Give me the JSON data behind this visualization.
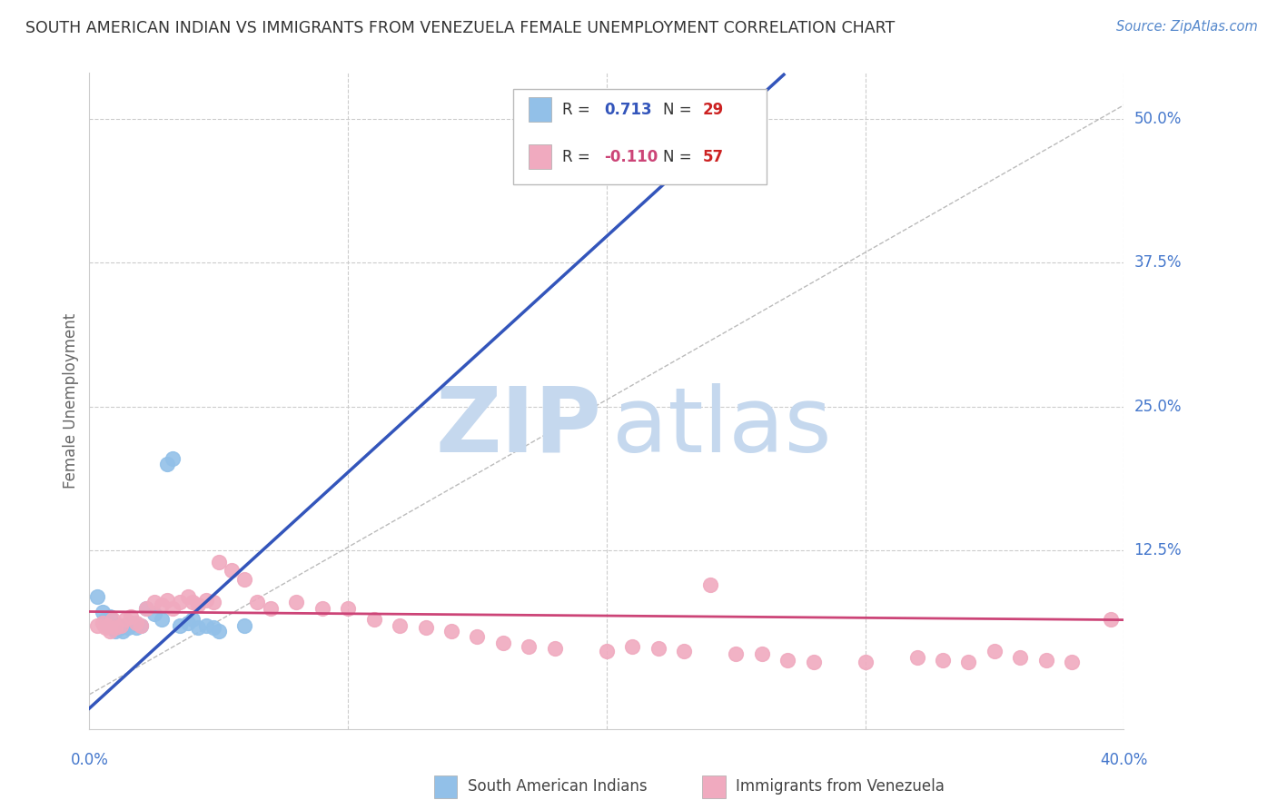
{
  "title": "SOUTH AMERICAN INDIAN VS IMMIGRANTS FROM VENEZUELA FEMALE UNEMPLOYMENT CORRELATION CHART",
  "source": "Source: ZipAtlas.com",
  "ylabel": "Female Unemployment",
  "xlim": [
    0.0,
    0.4
  ],
  "ylim": [
    -0.03,
    0.54
  ],
  "yticks": [
    0.0,
    0.125,
    0.25,
    0.375,
    0.5
  ],
  "ytick_labels": [
    "",
    "12.5%",
    "25.0%",
    "37.5%",
    "50.0%"
  ],
  "xticks": [
    0.0,
    0.1,
    0.2,
    0.3,
    0.4
  ],
  "xtick_labels": [
    "0.0%",
    "",
    "",
    "",
    "40.0%"
  ],
  "blue_R": 0.713,
  "blue_N": 29,
  "pink_R": -0.11,
  "pink_N": 57,
  "blue_color": "#92C0E8",
  "pink_color": "#F0AABF",
  "blue_line_color": "#3355BB",
  "pink_line_color": "#CC4477",
  "blue_line_slope": 2.05,
  "blue_line_intercept": -0.012,
  "pink_line_slope": -0.018,
  "pink_line_intercept": 0.072,
  "diag_line_slope": 1.28,
  "diag_line_intercept": 0.0,
  "watermark_zip_color": "#C5D8EE",
  "watermark_atlas_color": "#C5D8EE",
  "background_color": "#FFFFFF",
  "grid_color": "#CCCCCC",
  "title_color": "#333333",
  "source_color": "#5588CC",
  "tick_color": "#4477CC",
  "ylabel_color": "#666666",
  "legend_box_color": "#DDDDDD",
  "blue_scatter_x": [
    0.003,
    0.005,
    0.006,
    0.007,
    0.008,
    0.009,
    0.01,
    0.011,
    0.012,
    0.013,
    0.014,
    0.015,
    0.016,
    0.018,
    0.02,
    0.022,
    0.025,
    0.028,
    0.03,
    0.032,
    0.035,
    0.038,
    0.04,
    0.042,
    0.045,
    0.048,
    0.05,
    0.06,
    0.24
  ],
  "blue_scatter_y": [
    0.085,
    0.072,
    0.065,
    0.06,
    0.068,
    0.058,
    0.055,
    0.06,
    0.058,
    0.055,
    0.06,
    0.058,
    0.062,
    0.058,
    0.06,
    0.075,
    0.07,
    0.065,
    0.2,
    0.205,
    0.06,
    0.062,
    0.065,
    0.058,
    0.06,
    0.058,
    0.055,
    0.06,
    0.495
  ],
  "pink_scatter_x": [
    0.003,
    0.005,
    0.006,
    0.007,
    0.008,
    0.009,
    0.01,
    0.012,
    0.014,
    0.016,
    0.018,
    0.02,
    0.022,
    0.025,
    0.028,
    0.03,
    0.032,
    0.035,
    0.038,
    0.04,
    0.042,
    0.045,
    0.048,
    0.05,
    0.055,
    0.06,
    0.065,
    0.07,
    0.08,
    0.09,
    0.1,
    0.11,
    0.12,
    0.13,
    0.14,
    0.15,
    0.16,
    0.17,
    0.18,
    0.2,
    0.21,
    0.22,
    0.23,
    0.24,
    0.25,
    0.26,
    0.27,
    0.28,
    0.3,
    0.32,
    0.33,
    0.34,
    0.35,
    0.36,
    0.37,
    0.38,
    0.395
  ],
  "pink_scatter_y": [
    0.06,
    0.062,
    0.058,
    0.06,
    0.055,
    0.065,
    0.058,
    0.06,
    0.065,
    0.068,
    0.062,
    0.06,
    0.075,
    0.08,
    0.078,
    0.082,
    0.075,
    0.08,
    0.085,
    0.08,
    0.078,
    0.082,
    0.08,
    0.115,
    0.108,
    0.1,
    0.08,
    0.075,
    0.08,
    0.075,
    0.075,
    0.065,
    0.06,
    0.058,
    0.055,
    0.05,
    0.045,
    0.042,
    0.04,
    0.038,
    0.042,
    0.04,
    0.038,
    0.095,
    0.035,
    0.035,
    0.03,
    0.028,
    0.028,
    0.032,
    0.03,
    0.028,
    0.038,
    0.032,
    0.03,
    0.028,
    0.065
  ]
}
